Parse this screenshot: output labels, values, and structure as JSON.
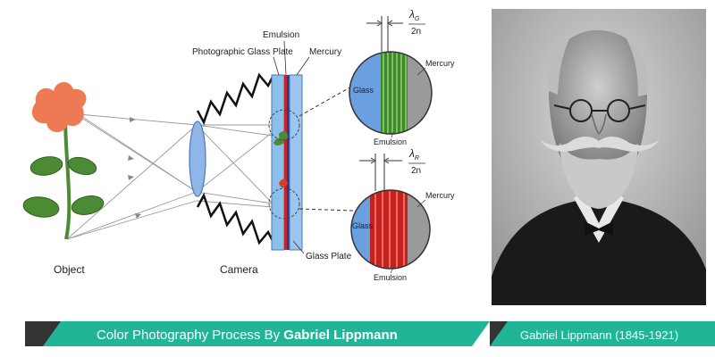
{
  "diagram": {
    "labels": {
      "object": "Object",
      "camera": "Camera",
      "glass_plate_bottom": "Glass Plate",
      "photographic_glass_plate": "Photographic Glass Plate",
      "emulsion_top": "Emulsion",
      "mercury_top": "Mercury"
    },
    "inset_green": {
      "lambda": "λ",
      "lambda_sub": "G",
      "denominator": "2n",
      "glass": "Glass",
      "mercury": "Mercury",
      "emulsion": "Emulsion"
    },
    "inset_red": {
      "lambda": "λ",
      "lambda_sub": "R",
      "denominator": "2n",
      "glass": "Glass",
      "mercury": "Mercury",
      "emulsion": "Emulsion"
    }
  },
  "banner": {
    "title_prefix": "Color Photography Process By ",
    "title_name": "Gabriel Lippmann",
    "caption": "Gabriel Lippmann (1845-1921)"
  },
  "colors": {
    "banner_dark": "#333333",
    "banner_teal": "#1fb596",
    "flower": "#ee7a53",
    "leaf": "#4c8a33",
    "glass_blue": "#6a9fe0",
    "stripe_green": "#3d8a2c",
    "stripe_red": "#c4211f",
    "mercury_grey": "#9a9a9a"
  }
}
